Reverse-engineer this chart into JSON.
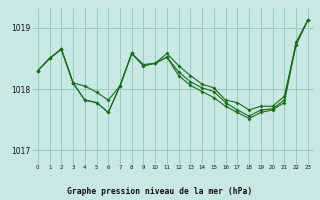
{
  "xlabel": "Graphe pression niveau de la mer (hPa)",
  "bg_color": "#c8e8e4",
  "line_color": "#1a6b1a",
  "grid_color": "#99ccbb",
  "ylim": [
    1016.78,
    1019.32
  ],
  "xlim": [
    -0.5,
    23.5
  ],
  "yticks": [
    1017,
    1018,
    1019
  ],
  "xticks": [
    0,
    1,
    2,
    3,
    4,
    5,
    6,
    7,
    8,
    9,
    10,
    11,
    12,
    13,
    14,
    15,
    16,
    17,
    18,
    19,
    20,
    21,
    22,
    23
  ],
  "series": [
    [
      1018.3,
      1018.5,
      1018.65,
      1018.1,
      1018.05,
      1017.95,
      1017.82,
      1018.05,
      1018.58,
      1018.4,
      1018.42,
      1018.58,
      1018.38,
      1018.22,
      1018.08,
      1018.02,
      1017.82,
      1017.78,
      1017.66,
      1017.72,
      1017.72,
      1017.88,
      1018.72,
      1019.12
    ],
    [
      1018.3,
      1018.5,
      1018.65,
      1018.1,
      1017.82,
      1017.78,
      1017.62,
      1018.05,
      1018.58,
      1018.38,
      1018.42,
      1018.52,
      1018.28,
      1018.12,
      1018.02,
      1017.96,
      1017.78,
      1017.66,
      1017.56,
      1017.66,
      1017.68,
      1017.82,
      1018.76,
      1019.12
    ],
    [
      1018.3,
      1018.5,
      1018.65,
      1018.1,
      1017.82,
      1017.78,
      1017.62,
      1018.05,
      1018.58,
      1018.38,
      1018.42,
      1018.52,
      1018.22,
      1018.06,
      1017.96,
      1017.86,
      1017.72,
      1017.62,
      1017.52,
      1017.62,
      1017.66,
      1017.78,
      1018.72,
      1019.12
    ]
  ]
}
